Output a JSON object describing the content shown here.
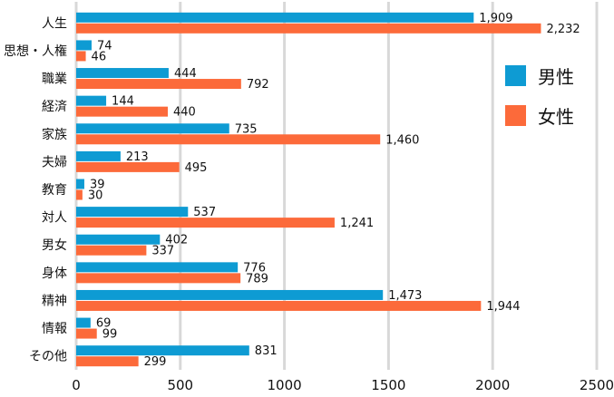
{
  "chart_data": {
    "type": "bar",
    "orientation": "horizontal",
    "categories": [
      "人生",
      "思想・人権",
      "職業",
      "経済",
      "家族",
      "夫婦",
      "教育",
      "対人",
      "男女",
      "身体",
      "精神",
      "情報",
      "その他"
    ],
    "series": [
      {
        "name": "男性",
        "color": "#0e9bd3",
        "values": [
          1909,
          74,
          444,
          144,
          735,
          213,
          39,
          537,
          402,
          776,
          1473,
          69,
          831
        ]
      },
      {
        "name": "女性",
        "color": "#fc6a3a",
        "values": [
          2232,
          46,
          792,
          440,
          1460,
          495,
          30,
          1241,
          337,
          789,
          1944,
          99,
          299
        ]
      }
    ],
    "value_labels": [
      [
        "1,909",
        "74",
        "444",
        "144",
        "735",
        "213",
        "39",
        "537",
        "402",
        "776",
        "1,473",
        "69",
        "831"
      ],
      [
        "2,232",
        "46",
        "792",
        "440",
        "1,460",
        "495",
        "30",
        "1,241",
        "337",
        "789",
        "1,944",
        "99",
        "299"
      ]
    ],
    "xticks": [
      0,
      500,
      1000,
      1500,
      2000,
      2500
    ],
    "xlim": [
      0,
      2500
    ],
    "grid": "vertical",
    "legend_position": "right",
    "gridline_color": "#d8d8d8"
  }
}
